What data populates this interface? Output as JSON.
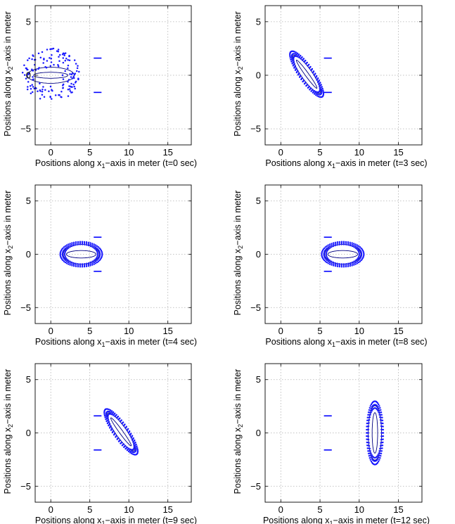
{
  "chart_data": [
    {
      "type": "scatter",
      "xlabel_main": "Positions along x",
      "xlabel_sub": "1",
      "xlabel_rest": "−axis in meter (t=0 sec)",
      "ylabel_main": "Positions along x",
      "ylabel_sub": "2",
      "ylabel_rest": "−axis in meter",
      "xlim": [
        -2,
        18
      ],
      "ylim": [
        -6.5,
        6.5
      ],
      "xticks": [
        0,
        5,
        10,
        15
      ],
      "yticks": [
        -5,
        0,
        5
      ],
      "xtick_labels": [
        "0",
        "5",
        "10",
        "15"
      ],
      "ytick_labels": [
        "−5",
        "0",
        "5"
      ],
      "grid": true,
      "formation": {
        "center": [
          0,
          0
        ],
        "a": 2.2,
        "b": 3.1,
        "angle_deg": 90,
        "scatter": true
      },
      "ellipses": [
        {
          "a": 0.75,
          "b": 3.0
        },
        {
          "a": 0.28,
          "b": 2.2
        }
      ],
      "markers": [
        {
          "x": [
            5.5,
            6.5
          ],
          "y": 1.6
        },
        {
          "x": [
            5.5,
            6.5
          ],
          "y": -1.6
        }
      ]
    },
    {
      "type": "scatter",
      "xlabel_main": "Positions along x",
      "xlabel_sub": "1",
      "xlabel_rest": "−axis in meter (t=3 sec)",
      "ylabel_main": "Positions along x",
      "ylabel_sub": "2",
      "ylabel_rest": "−axis in meter",
      "xlim": [
        -2,
        18
      ],
      "ylim": [
        -6.5,
        6.5
      ],
      "xticks": [
        0,
        5,
        10,
        15
      ],
      "yticks": [
        -5,
        0,
        5
      ],
      "xtick_labels": [
        "0",
        "5",
        "10",
        "15"
      ],
      "ytick_labels": [
        "−5",
        "0",
        "5"
      ],
      "grid": true,
      "formation": {
        "center": [
          3.3,
          0.1
        ],
        "a": 2.6,
        "b": 0.75,
        "angle_deg": -45,
        "scatter": false
      },
      "ellipses": [
        {
          "a": 2.45,
          "b": 0.62
        },
        {
          "a": 1.85,
          "b": 0.2
        }
      ],
      "markers": [
        {
          "x": [
            5.5,
            6.5
          ],
          "y": 1.6
        },
        {
          "x": [
            5.5,
            6.5
          ],
          "y": -1.6
        }
      ]
    },
    {
      "type": "scatter",
      "xlabel_main": "Positions along x",
      "xlabel_sub": "1",
      "xlabel_rest": "−axis in meter (t=4 sec)",
      "ylabel_main": "Positions along x",
      "ylabel_sub": "2",
      "ylabel_rest": "−axis in meter",
      "xlim": [
        -2,
        18
      ],
      "ylim": [
        -6.5,
        6.5
      ],
      "xticks": [
        0,
        5,
        10,
        15
      ],
      "yticks": [
        -5,
        0,
        5
      ],
      "xtick_labels": [
        "0",
        "5",
        "10",
        "15"
      ],
      "ytick_labels": [
        "−5",
        "0",
        "5"
      ],
      "grid": true,
      "formation": {
        "center": [
          3.9,
          0
        ],
        "a": 2.4,
        "b": 1.05,
        "angle_deg": 0,
        "scatter": false
      },
      "ellipses": [
        {
          "a": 2.3,
          "b": 0.92
        },
        {
          "a": 1.9,
          "b": 0.35
        }
      ],
      "markers": [
        {
          "x": [
            5.5,
            6.5
          ],
          "y": 1.6
        },
        {
          "x": [
            5.5,
            6.5
          ],
          "y": -1.6
        }
      ]
    },
    {
      "type": "scatter",
      "xlabel_main": "Positions along x",
      "xlabel_sub": "1",
      "xlabel_rest": "−axis in meter (t=8 sec)",
      "ylabel_main": "Positions along x",
      "ylabel_sub": "2",
      "ylabel_rest": "−axis in meter",
      "xlim": [
        -2,
        18
      ],
      "ylim": [
        -6.5,
        6.5
      ],
      "xticks": [
        0,
        5,
        10,
        15
      ],
      "yticks": [
        -5,
        0,
        5
      ],
      "xtick_labels": [
        "0",
        "5",
        "10",
        "15"
      ],
      "ytick_labels": [
        "−5",
        "0",
        "5"
      ],
      "grid": true,
      "formation": {
        "center": [
          7.9,
          0
        ],
        "a": 2.4,
        "b": 1.05,
        "angle_deg": 0,
        "scatter": false
      },
      "ellipses": [
        {
          "a": 2.3,
          "b": 0.92
        },
        {
          "a": 1.9,
          "b": 0.35
        }
      ],
      "markers": [
        {
          "x": [
            5.5,
            6.5
          ],
          "y": 1.6
        },
        {
          "x": [
            5.5,
            6.5
          ],
          "y": -1.6
        }
      ]
    },
    {
      "type": "scatter",
      "xlabel_main": "Positions along x",
      "xlabel_sub": "1",
      "xlabel_rest": "−axis in meter (t=9 sec)",
      "ylabel_main": "Positions along x",
      "ylabel_sub": "2",
      "ylabel_rest": "−axis in meter",
      "xlim": [
        -2,
        18
      ],
      "ylim": [
        -6.5,
        6.5
      ],
      "xticks": [
        0,
        5,
        10,
        15
      ],
      "yticks": [
        -5,
        0,
        5
      ],
      "xtick_labels": [
        "0",
        "5",
        "10",
        "15"
      ],
      "ytick_labels": [
        "−5",
        "0",
        "5"
      ],
      "grid": true,
      "formation": {
        "center": [
          9.0,
          0.1
        ],
        "a": 2.6,
        "b": 0.75,
        "angle_deg": -45,
        "scatter": false
      },
      "ellipses": [
        {
          "a": 2.45,
          "b": 0.62
        },
        {
          "a": 1.85,
          "b": 0.2
        }
      ],
      "markers": [
        {
          "x": [
            5.5,
            6.5
          ],
          "y": 1.6
        },
        {
          "x": [
            5.5,
            6.5
          ],
          "y": -1.6
        }
      ]
    },
    {
      "type": "scatter",
      "xlabel_main": "Positions along x",
      "xlabel_sub": "1",
      "xlabel_rest": "−axis in meter (t=12 sec)",
      "ylabel_main": "Positions along x",
      "ylabel_sub": "2",
      "ylabel_rest": "−axis in meter",
      "xlim": [
        -2,
        18
      ],
      "ylim": [
        -6.5,
        6.5
      ],
      "xticks": [
        0,
        5,
        10,
        15
      ],
      "yticks": [
        -5,
        0,
        5
      ],
      "xtick_labels": [
        "0",
        "5",
        "10",
        "15"
      ],
      "ytick_labels": [
        "−5",
        "0",
        "5"
      ],
      "grid": true,
      "formation": {
        "center": [
          12,
          0
        ],
        "a": 0.95,
        "b": 2.65,
        "angle_deg": 0,
        "scatter": false
      },
      "ellipses": [
        {
          "a": 0.85,
          "b": 2.55
        },
        {
          "a": 0.35,
          "b": 1.9
        }
      ],
      "markers": [
        {
          "x": [
            5.5,
            6.5
          ],
          "y": 1.6
        },
        {
          "x": [
            5.5,
            6.5
          ],
          "y": -1.6
        }
      ]
    }
  ],
  "colors": {
    "points": "#1a1aff",
    "ellipse_line": "#000080",
    "marker": "#0000ff",
    "grid": "#b0b0b0",
    "axis": "#000000"
  }
}
